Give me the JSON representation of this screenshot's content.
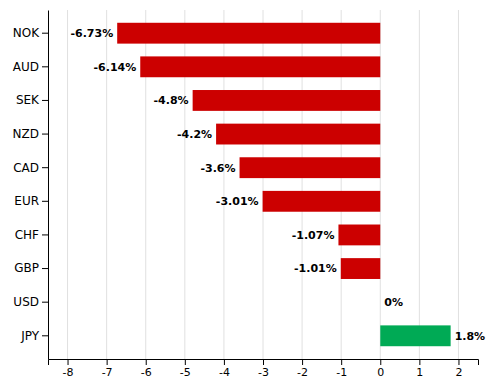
{
  "chart_data": {
    "type": "bar",
    "orientation": "horizontal",
    "categories": [
      "JPY",
      "USD",
      "GBP",
      "CHF",
      "EUR",
      "CAD",
      "NZD",
      "SEK",
      "AUD",
      "NOK"
    ],
    "values": [
      1.8,
      0.0,
      -1.01,
      -1.07,
      -3.01,
      -3.6,
      -4.2,
      -4.8,
      -6.14,
      -6.73
    ],
    "value_labels": [
      "1.8%",
      "0%",
      "-1.01%",
      "-1.07%",
      "-3.01%",
      "-3.6%",
      "-4.2%",
      "-4.8%",
      "-6.14%",
      "-6.73%"
    ],
    "data_labels": true,
    "colors": [
      "#00AA55",
      "#ffffff",
      "#CC0000",
      "#CC0000",
      "#CC0000",
      "#CC0000",
      "#CC0000",
      "#CC0000",
      "#CC0000",
      "#CC0000"
    ],
    "xlim": [
      -8.5,
      2.5
    ],
    "xticks": [
      -8,
      -7,
      -6,
      -5,
      -4,
      -3,
      -2,
      -1,
      0,
      1,
      2
    ],
    "grid": true
  }
}
